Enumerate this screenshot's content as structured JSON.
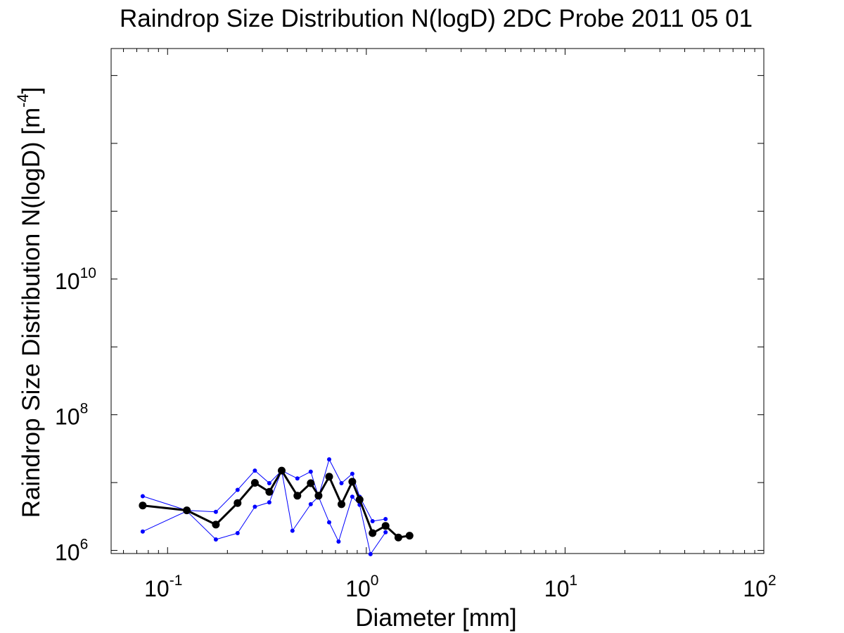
{
  "chart_data": {
    "type": "line",
    "title": "Raindrop Size Distribution N(logD) 2DC Probe 2011 05 01",
    "xlabel": "Diameter [mm]",
    "ylabel_main": "Raindrop Size Distribution N(logD) [m",
    "ylabel_exp": "-4",
    "ylabel_close": "]",
    "x_scale": "log",
    "y_scale": "log",
    "xlim": [
      0.052,
      100
    ],
    "ylim": [
      900000,
      25000000000000
    ],
    "grid": false,
    "x_ticks": [
      {
        "base": "10",
        "exp": "-1",
        "value": 0.1
      },
      {
        "base": "10",
        "exp": "0",
        "value": 1
      },
      {
        "base": "10",
        "exp": "1",
        "value": 10
      },
      {
        "base": "10",
        "exp": "2",
        "value": 100
      }
    ],
    "y_ticks": [
      {
        "base": "10",
        "exp": "6",
        "value": 1000000
      },
      {
        "base": "10",
        "exp": "8",
        "value": 100000000
      },
      {
        "base": "10",
        "exp": "10",
        "value": 10000000000
      }
    ],
    "series": [
      {
        "color": "#0000ff",
        "role": "upper bound",
        "points": [
          [
            0.075,
            6300000
          ],
          [
            0.125,
            3900000
          ],
          [
            0.175,
            3700000
          ],
          [
            0.225,
            7800000
          ],
          [
            0.275,
            15000000
          ],
          [
            0.325,
            9800000
          ],
          [
            0.375,
            15000000
          ],
          [
            0.45,
            11500000
          ],
          [
            0.525,
            14500000
          ],
          [
            0.575,
            6200000
          ],
          [
            0.65,
            22000000
          ],
          [
            0.75,
            9800000
          ],
          [
            0.85,
            13500000
          ],
          [
            0.925,
            6200000
          ],
          [
            1.075,
            2700000
          ],
          [
            1.25,
            2900000
          ]
        ]
      },
      {
        "color": "#0000ff",
        "role": "lower bound",
        "points": [
          [
            0.075,
            1900000
          ],
          [
            0.125,
            3800000
          ],
          [
            0.175,
            1450000
          ],
          [
            0.225,
            1800000
          ],
          [
            0.275,
            4400000
          ],
          [
            0.325,
            5100000
          ],
          [
            0.375,
            15000000
          ],
          [
            0.425,
            1950000
          ],
          [
            0.525,
            4800000
          ],
          [
            0.575,
            6200000
          ],
          [
            0.65,
            2600000
          ],
          [
            0.725,
            1350000
          ],
          [
            0.85,
            6200000
          ],
          [
            0.925,
            4700000
          ],
          [
            1.05,
            880000
          ],
          [
            1.25,
            1850000
          ]
        ]
      },
      {
        "color": "#000000",
        "role": "mean",
        "points": [
          [
            0.075,
            4600000
          ],
          [
            0.125,
            3900000
          ],
          [
            0.175,
            2400000
          ],
          [
            0.225,
            5000000
          ],
          [
            0.275,
            9900000
          ],
          [
            0.325,
            7300000
          ],
          [
            0.375,
            15000000
          ],
          [
            0.45,
            6400000
          ],
          [
            0.525,
            9800000
          ],
          [
            0.575,
            6400000
          ],
          [
            0.65,
            12200000
          ],
          [
            0.75,
            4800000
          ],
          [
            0.85,
            10300000
          ],
          [
            0.925,
            5600000
          ],
          [
            1.075,
            1800000
          ],
          [
            1.25,
            2300000
          ],
          [
            1.45,
            1550000
          ],
          [
            1.65,
            1650000
          ]
        ]
      }
    ]
  }
}
